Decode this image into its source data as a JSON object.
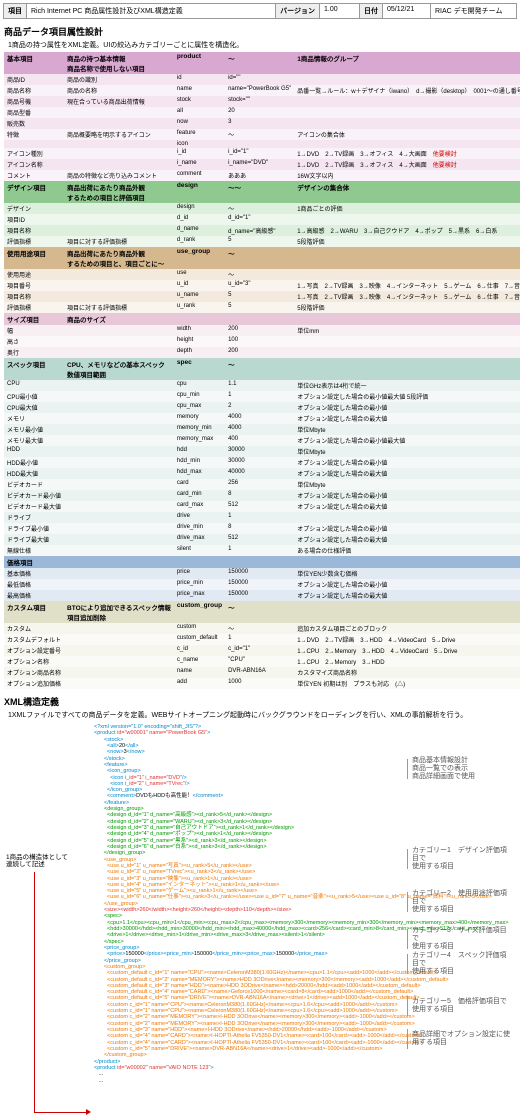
{
  "header": {
    "k_item": "項目",
    "item": "Rich Internet PC 商品属性設計及びXML構造定義",
    "k_ver": "バージョン",
    "ver": "1.00",
    "k_date": "日付",
    "date": "05/12/21",
    "team": "RIAC デモ開発チーム"
  },
  "sect1": "商品データ項目属性設計",
  "desc1": "1商品の持つ属性をXML定義。UIの絞込みカテゴリーごとに属性を構造化。",
  "groups": [
    {
      "bg": "#d9a8d0",
      "hdr": [
        "基本項目",
        "商品の持つ基本情報\n商品名称で使用しない項目",
        "product",
        "<product>〜",
        "1商品情報のグループ"
      ],
      "rows": [
        [
          "商品ID",
          "商品の識別",
          "id",
          "id=\"\"",
          ""
        ],
        [
          "商品名称",
          "商品の名称",
          "name",
          "name=\"PowerBook G5\"",
          "品番一覧→ルール：w＋デザイナ（iwano）　d→撮影（desktop）　0001～の通し番号"
        ],
        [
          "商品号機",
          "現在合っている商品出荷情報",
          "stock",
          "stock=\"\"",
          ""
        ],
        [
          "商品型番",
          "",
          "all",
          "<all>20</all>",
          ""
        ],
        [
          "販売数",
          "",
          "now",
          "<now>3</now>",
          ""
        ],
        [
          "特徴",
          "商品概要略を明示するアイコン",
          "feature",
          "<feature>〜",
          "アイコンの集合体"
        ],
        [
          "",
          "",
          "icon",
          "<icon_group>",
          ""
        ],
        [
          "アイコン種別",
          "",
          "i_id",
          "i_id=\"1\"",
          "1→DVD　2→TV録画　3→オフィス　4→大画面　<span class=red>他要検討</span>"
        ],
        [
          "アイコン名称",
          "",
          "i_name",
          "i_name=\"DVD\"",
          "1→DVD　2→TV録画　3→オフィス　4→大画面　<span class=red>他要検討</span>"
        ],
        [
          "コメント",
          "商品の特徴など売り込みコメント",
          "comment",
          "<comment>あああ</comment>",
          "16W文字以内"
        ]
      ]
    },
    {
      "bg": "#8fc98f",
      "hdr": [
        "デザイン項目",
        "商品出荷にあたり商品外観\nするための項目と評価項目",
        "design",
        "<design_group>〜</design_group>〜",
        "デザインの集合体"
      ],
      "rows": [
        [
          "デザイン",
          "",
          "design",
          "<design>〜",
          "1商品ごとの評価"
        ],
        [
          "項目ID",
          "",
          "d_id",
          "d_id=\"1\"",
          ""
        ],
        [
          "項目名称",
          "",
          "d_name",
          "d_name=\"高級感\"",
          "1→高級感　2→WARU　3→自己クウドア　4→ポップ　5→黒系　6→白系"
        ],
        [
          "評価指標",
          "項目に対する評価指標",
          "d_rank",
          "<d_rank>5</d_rank>",
          "5段階評価"
        ]
      ]
    },
    {
      "bg": "#d6b88f",
      "hdr": [
        "使用用途項目",
        "商品出荷にあたり商品外観\nするための項目と、項目ごとに〜",
        "use_group",
        "<use_group>〜</use_group>",
        "  "
      ],
      "rows": [
        [
          "使用用途",
          "",
          "use",
          "<use>〜",
          ""
        ],
        [
          "項目番号",
          "",
          "u_id",
          "u_id=\"3\"",
          "1→写真　2→TV録画　3→映像　4→インターネット　5→ゲーム　6→仕事　7→音楽　8→資料・家計簿・家計"
        ],
        [
          "項目名称",
          "",
          "u_name",
          "<u_name>5</u_name>",
          "1→写真　2→TV録画　3→映像　4→インターネット　5→ゲーム　6→仕事　7→音楽　8→資料・家計簿・家計"
        ],
        [
          "評価指標",
          "項目に対する評価指標",
          "u_rank",
          "<u_rank>5</u_rank>",
          "5段階評価"
        ]
      ]
    },
    {
      "bg": "#e8c8d8",
      "hdr": [
        "サイズ項目",
        "商品のサイズ",
        "",
        "",
        ""
      ],
      "rows": [
        [
          "幅",
          "",
          "width",
          "<width>200</width>",
          "単位mm"
        ],
        [
          "高さ",
          "",
          "height",
          "<height>100</height>",
          ""
        ],
        [
          "奥行",
          "",
          "depth",
          "<depth>200</depth>",
          ""
        ]
      ]
    },
    {
      "bg": "#b8d8d0",
      "hdr": [
        "スペック項目",
        "CPU、メモリなどの基本スペック\n数値項目範囲",
        "spec",
        "<spec>〜</spec>",
        ""
      ],
      "rows": [
        [
          "CPU",
          "",
          "cpu",
          "<cpu>1.1</cpu>",
          "単位GHz表示は4桁で統一"
        ],
        [
          "CPU最小値",
          "",
          "cpu_min",
          "<cpu_min>1</cpu_min>",
          "オプション設定した場合の最小値最大値 5段評価"
        ],
        [
          "CPU最大値",
          "",
          "cpu_max",
          "<cpu_max>2</cpu_max>",
          "オプション設定した場合の最小値"
        ],
        [
          "メモリ",
          "",
          "memory",
          "<memory>4000</memory>",
          "オプション設定した場合の最大値"
        ],
        [
          "メモリ最小値",
          "",
          "memory_min",
          "<memory_min>4000</memory_min>",
          "単位Mbyte"
        ],
        [
          "メモリ最大値",
          "",
          "memory_max",
          "<memory_max>400</memory_max>",
          "オプション設定した場合の最小値最大値"
        ],
        [
          "HDD",
          "",
          "hdd",
          "<hdd>30000</hdd>",
          "単位Mbyte"
        ],
        [
          "HDD最小値",
          "",
          "hdd_min",
          "<hdd_min>30000</hdd_min>",
          "オプション設定した場合の最小値"
        ],
        [
          "HDD最大値",
          "",
          "hdd_max",
          "<hdd_max>40000</hdd_max>",
          "オプション設定した場合の最大値"
        ],
        [
          "ビデオカード",
          "",
          "card",
          "<card>256</card>",
          "単位Mbyte"
        ],
        [
          "ビデオカード最小値",
          "",
          "card_min",
          "<card_min>8</card_min>",
          "オプション設定した場合の最小値"
        ],
        [
          "ビデオカード最大値",
          "",
          "card_max",
          "<card_max>512</card_max>",
          "オプション設定した場合の最大値"
        ],
        [
          "ドライブ",
          "",
          "drive",
          "<drive>1</drive>",
          ""
        ],
        [
          "ドライブ最小値",
          "",
          "drive_min",
          "<drive_min>8</drive_min>",
          "オプション設定した場合の最小値"
        ],
        [
          "ドライブ最大値",
          "",
          "drive_max",
          "<drive_max>512</drive_max>",
          "オプション設定した場合の最大値"
        ],
        [
          "無線仕様",
          "",
          "silent",
          "<silent>1</silent>",
          "ある場合の仕様評価"
        ]
      ]
    },
    {
      "bg": "#9bb8d8",
      "hdr": [
        "価格項目",
        "",
        "",
        "",
        ""
      ],
      "rows": [
        [
          "基本価格",
          "",
          "price",
          "<price>150000</price>",
          "単位YEN少数含む価格"
        ],
        [
          "最低価格",
          "",
          "price_min",
          "<price_min>150000</price_min>",
          "オプション設定した場合の最小値"
        ],
        [
          "最高価格",
          "",
          "price_max",
          "<price_max>150000</price_max>",
          "オプション設定した場合の最大値"
        ]
      ]
    },
    {
      "bg": "#e0e0c8",
      "hdr": [
        "カスタム項目",
        "BTOにより追加できるスペック情報\n項目追加削除",
        "custom_group",
        "<custom_group>〜</custom_group>",
        ""
      ],
      "rows": [
        [
          "カスタム",
          "",
          "custom",
          "<custom>〜</custom>",
          "追加カスタム項目ごとのブロック"
        ],
        [
          "カスタムデフォルト",
          "",
          "custom_default",
          "<custom_default>1</custom_default>",
          "1→DVD　2→TV録画　3→HDD　4→VideoCard　5→Drive"
        ],
        [
          "オプション設定番号",
          "",
          "c_id",
          "c_id=\"1\"",
          "1→CPU　2→Memory　3→HDD　4→VideoCard　5→Drive"
        ],
        [
          "オプション名称",
          "",
          "c_name",
          "<c_name>\"CPU\"",
          "1→CPU　2→Memory　3→HDD"
        ],
        [
          "オプション商品名称",
          "",
          "name",
          "<name>DVR-ABN16A</name>",
          "カスタマイズ商品名称"
        ],
        [
          "オプション追加価格",
          "",
          "add",
          "<add>1000</add>",
          "単位YEN 初期は別　プラスも対応　(△)"
        ]
      ]
    }
  ],
  "sect2": "XML構造定義",
  "desc2": "1XMLファイルですべての商品データを定義。WEBサイトオープニング起動時にバックグラウンドをローディングを行い、XMLの事前解析を行う。",
  "annos": [
    {
      "t": 35,
      "txt": "商品基本情報設計\n商品一覧での表示\n商品詳細画面で使用"
    },
    {
      "t": 125,
      "txt": "カテゴリー1　デザイン評価項目で\n使用する項目"
    },
    {
      "t": 168,
      "txt": "カテゴリー2　使用用途評価項目で\n使用する項目"
    },
    {
      "t": 205,
      "txt": "カテゴリー3　サイズ評価項目で\n使用する項目"
    },
    {
      "t": 230,
      "txt": "カテゴリー4　スペック評価項目で\n使用する項目"
    },
    {
      "t": 272,
      "txt": "カテゴリー5　価格評価項目で使用する項目"
    },
    {
      "t": 305,
      "txt": "商品詳細でオプション設定に使用する項目"
    }
  ],
  "arrowLabel": "1商品の構造体として\n連続して記述"
}
